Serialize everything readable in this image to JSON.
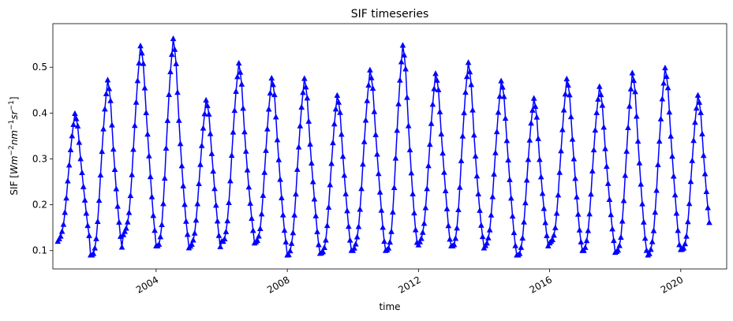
{
  "chart_data": {
    "type": "line",
    "title": "SIF timeseries",
    "xlabel": "time",
    "ylabel_main": "SIF [Wm",
    "ylabel_parts": [
      {
        "text": "SIF [",
        "italic": false,
        "sup": false
      },
      {
        "text": "Wm",
        "italic": true,
        "sup": false
      },
      {
        "text": "−2",
        "italic": false,
        "sup": true
      },
      {
        "text": "nm",
        "italic": true,
        "sup": false
      },
      {
        "text": "−1",
        "italic": false,
        "sup": true
      },
      {
        "text": "sr",
        "italic": true,
        "sup": false
      },
      {
        "text": "−1",
        "italic": false,
        "sup": true
      },
      {
        "text": "]",
        "italic": false,
        "sup": false
      }
    ],
    "xlim": [
      2000.85,
      2021.4
    ],
    "ylim": [
      0.06,
      0.595
    ],
    "x_ticks": [
      {
        "value": 2004,
        "label": "2004"
      },
      {
        "value": 2008,
        "label": "2008"
      },
      {
        "value": 2012,
        "label": "2012"
      },
      {
        "value": 2016,
        "label": "2016"
      },
      {
        "value": 2020,
        "label": "2020"
      }
    ],
    "y_ticks": [
      {
        "value": 0.1,
        "label": "0.1"
      },
      {
        "value": 0.2,
        "label": "0.2"
      },
      {
        "value": 0.3,
        "label": "0.3"
      },
      {
        "value": 0.4,
        "label": "0.4"
      },
      {
        "value": 0.5,
        "label": "0.5"
      }
    ],
    "grid": false,
    "legend": "none",
    "color": "#0000ff",
    "marker": "triangle-up",
    "samples_per_year": 23,
    "x_start": 2001.0,
    "season_knots": [
      0.0,
      0.08,
      0.16,
      0.24,
      0.32,
      0.42,
      0.52,
      0.6,
      0.7,
      0.8,
      0.9,
      0.97
    ],
    "season_shape": [
      0.0,
      0.02,
      0.08,
      0.25,
      0.5,
      0.78,
      0.98,
      0.9,
      0.6,
      0.35,
      0.13,
      0.02
    ],
    "yearly_min": [
      0.12,
      0.09,
      0.13,
      0.11,
      0.1,
      0.12,
      0.11,
      0.09,
      0.09,
      0.1,
      0.1,
      0.11,
      0.11,
      0.1,
      0.09,
      0.11,
      0.1,
      0.09,
      0.09,
      0.1
    ],
    "yearly_max": [
      0.41,
      0.475,
      0.56,
      0.57,
      0.435,
      0.52,
      0.48,
      0.49,
      0.44,
      0.51,
      0.55,
      0.5,
      0.515,
      0.48,
      0.44,
      0.48,
      0.47,
      0.49,
      0.515,
      0.44
    ]
  }
}
